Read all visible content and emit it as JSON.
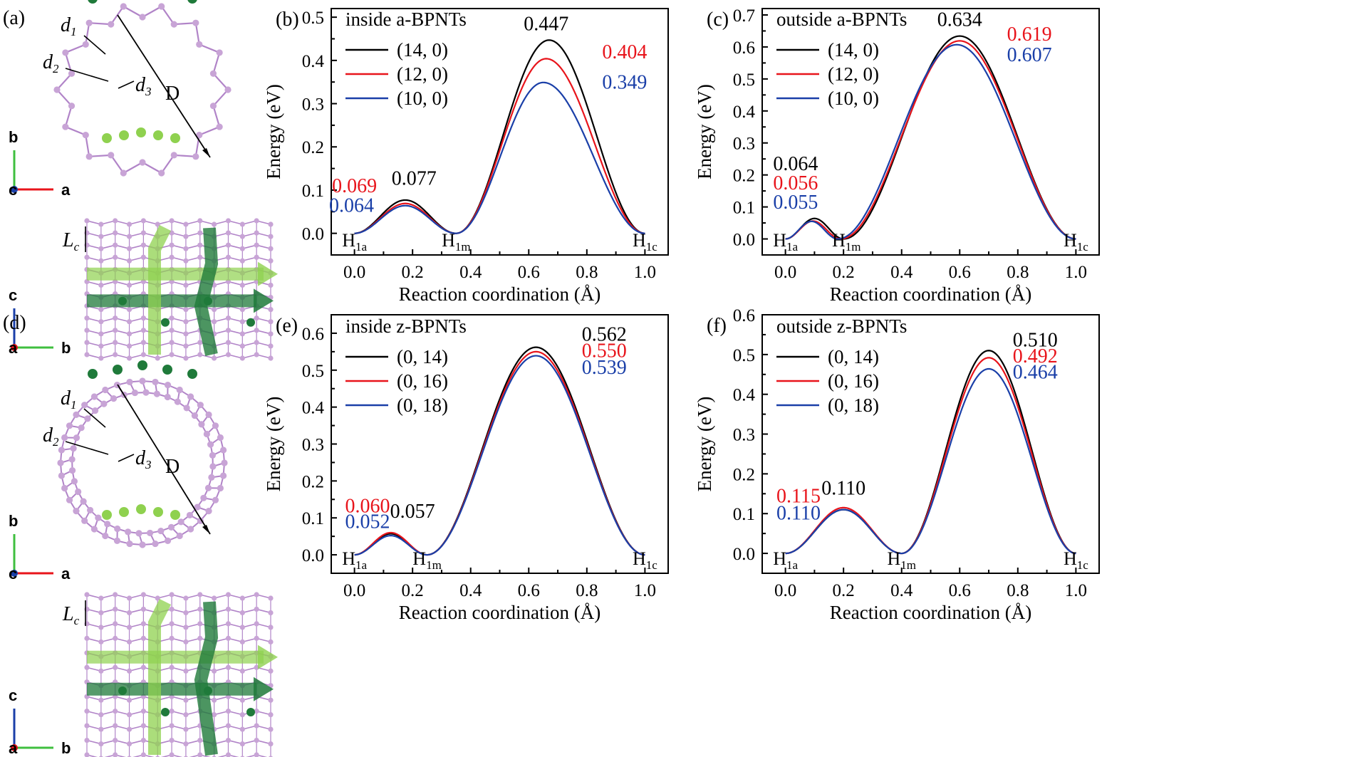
{
  "figure": {
    "molecule_panels": [
      {
        "letter": "(a)",
        "labels": {
          "d1": "d",
          "d1_sub": "1",
          "d2": "d",
          "d2_sub": "2",
          "d3": "d",
          "d3_sub": "3",
          "diameter": "D",
          "lc": "L",
          "lc_sub": "c"
        },
        "axes_top": {
          "x": "a",
          "y": "b",
          "origin": "c"
        },
        "axes_bottom": {
          "x": "b",
          "y": "c",
          "origin": "a"
        },
        "tube": "armchair"
      },
      {
        "letter": "(d)",
        "labels": {
          "d1": "d",
          "d1_sub": "1",
          "d2": "d",
          "d2_sub": "2",
          "d3": "d",
          "d3_sub": "3",
          "diameter": "D",
          "lc": "L",
          "lc_sub": "c"
        },
        "axes_top": {
          "x": "a",
          "y": "b",
          "origin": "c"
        },
        "axes_bottom": {
          "x": "b",
          "y": "c",
          "origin": "a"
        },
        "tube": "zigzag"
      }
    ],
    "colors": {
      "black": "#000000",
      "red": "#e8141b",
      "blue": "#1a3fa8",
      "atom": "#c8a4d6",
      "bond": "#b184c8",
      "h_dark": "#1f7a3a",
      "h_light": "#8fd14f"
    }
  },
  "chart_data": [
    {
      "letter": "(b)",
      "type": "line",
      "title": "inside a-BPNTs",
      "xlabel": "Reaction coordination (Å)",
      "ylabel": "Energy (eV)",
      "xlim": [
        -0.08,
        1.08
      ],
      "ylim": [
        -0.05,
        0.52
      ],
      "xticks": [
        "0.0",
        "0.2",
        "0.4",
        "0.6",
        "0.8",
        "1.0"
      ],
      "yticks": [
        "0.0",
        "0.1",
        "0.2",
        "0.3",
        "0.4",
        "0.5"
      ],
      "states": [
        {
          "label": "H",
          "sub": "1a",
          "x": 0.0
        },
        {
          "label": "H",
          "sub": "1m",
          "x": 0.35
        },
        {
          "label": "H",
          "sub": "1c",
          "x": 1.0
        }
      ],
      "series": [
        {
          "name": "(14, 0)",
          "color": "#000000",
          "x1": 0.175,
          "e1": 0.077,
          "xm": 0.35,
          "x2": 0.67,
          "e2": 0.447
        },
        {
          "name": "(12, 0)",
          "color": "#e8141b",
          "x1": 0.15,
          "e1": 0.069,
          "xm": 0.35,
          "x2": 0.66,
          "e2": 0.404
        },
        {
          "name": "(10, 0)",
          "color": "#1a3fa8",
          "x1": 0.14,
          "e1": 0.064,
          "xm": 0.35,
          "x2": 0.65,
          "e2": 0.349
        }
      ],
      "annotations": [
        {
          "text": "0.447",
          "color": "#000000"
        },
        {
          "text": "0.404",
          "color": "#e8141b"
        },
        {
          "text": "0.349",
          "color": "#1a3fa8"
        },
        {
          "text": "0.077",
          "color": "#000000"
        },
        {
          "text": "0.069",
          "color": "#e8141b"
        },
        {
          "text": "0.064",
          "color": "#1a3fa8"
        }
      ]
    },
    {
      "letter": "(c)",
      "type": "line",
      "title": "outside a-BPNTs",
      "xlabel": "Reaction coordination (Å)",
      "ylabel": "Energy (eV)",
      "xlim": [
        -0.08,
        1.08
      ],
      "ylim": [
        -0.05,
        0.72
      ],
      "xticks": [
        "0.0",
        "0.2",
        "0.4",
        "0.6",
        "0.8",
        "1.0"
      ],
      "yticks": [
        "0.0",
        "0.1",
        "0.2",
        "0.3",
        "0.4",
        "0.5",
        "0.6",
        "0.7"
      ],
      "states": [
        {
          "label": "H",
          "sub": "1a",
          "x": 0.0
        },
        {
          "label": "H",
          "sub": "1m",
          "x": 0.21
        },
        {
          "label": "H",
          "sub": "1c",
          "x": 1.0
        }
      ],
      "series": [
        {
          "name": "(14, 0)",
          "color": "#000000",
          "x1": 0.105,
          "e1": 0.064,
          "xm": 0.2,
          "x2": 0.6,
          "e2": 0.634
        },
        {
          "name": "(12, 0)",
          "color": "#e8141b",
          "x1": 0.1,
          "e1": 0.056,
          "xm": 0.19,
          "x2": 0.6,
          "e2": 0.619
        },
        {
          "name": "(10, 0)",
          "color": "#1a3fa8",
          "x1": 0.095,
          "e1": 0.055,
          "xm": 0.18,
          "x2": 0.59,
          "e2": 0.607
        }
      ],
      "annotations": [
        {
          "text": "0.634",
          "color": "#000000"
        },
        {
          "text": "0.619",
          "color": "#e8141b"
        },
        {
          "text": "0.607",
          "color": "#1a3fa8"
        },
        {
          "text": "0.064",
          "color": "#000000"
        },
        {
          "text": "0.056",
          "color": "#e8141b"
        },
        {
          "text": "0.055",
          "color": "#1a3fa8"
        }
      ]
    },
    {
      "letter": "(e)",
      "type": "line",
      "title": "inside z-BPNTs",
      "xlabel": "Reaction coordination (Å)",
      "ylabel": "Energy (eV)",
      "xlim": [
        -0.08,
        1.08
      ],
      "ylim": [
        -0.05,
        0.65
      ],
      "xticks": [
        "0.0",
        "0.2",
        "0.4",
        "0.6",
        "0.8",
        "1.0"
      ],
      "yticks": [
        "0.0",
        "0.1",
        "0.2",
        "0.3",
        "0.4",
        "0.5",
        "0.6"
      ],
      "states": [
        {
          "label": "H",
          "sub": "1a",
          "x": 0.0
        },
        {
          "label": "H",
          "sub": "1m",
          "x": 0.25
        },
        {
          "label": "H",
          "sub": "1c",
          "x": 1.0
        }
      ],
      "series": [
        {
          "name": "(0, 14)",
          "color": "#000000",
          "x1": 0.125,
          "e1": 0.057,
          "xm": 0.25,
          "x2": 0.625,
          "e2": 0.562
        },
        {
          "name": "(0, 16)",
          "color": "#e8141b",
          "x1": 0.125,
          "e1": 0.06,
          "xm": 0.25,
          "x2": 0.625,
          "e2": 0.55
        },
        {
          "name": "(0, 18)",
          "color": "#1a3fa8",
          "x1": 0.125,
          "e1": 0.052,
          "xm": 0.25,
          "x2": 0.625,
          "e2": 0.539
        }
      ],
      "annotations": [
        {
          "text": "0.562",
          "color": "#000000"
        },
        {
          "text": "0.550",
          "color": "#e8141b"
        },
        {
          "text": "0.539",
          "color": "#1a3fa8"
        },
        {
          "text": "0.057",
          "color": "#000000"
        },
        {
          "text": "0.060",
          "color": "#e8141b"
        },
        {
          "text": "0.052",
          "color": "#1a3fa8"
        }
      ]
    },
    {
      "letter": "(f)",
      "type": "line",
      "title": "outside z-BPNTs",
      "xlabel": "Reaction coordination (Å)",
      "ylabel": "Energy (eV)",
      "xlim": [
        -0.08,
        1.08
      ],
      "ylim": [
        -0.05,
        0.6
      ],
      "xticks": [
        "0.0",
        "0.2",
        "0.4",
        "0.6",
        "0.8",
        "1.0"
      ],
      "yticks": [
        "0.0",
        "0.1",
        "0.2",
        "0.3",
        "0.4",
        "0.5",
        "0.6"
      ],
      "states": [
        {
          "label": "H",
          "sub": "1a",
          "x": 0.0
        },
        {
          "label": "H",
          "sub": "1m",
          "x": 0.4
        },
        {
          "label": "H",
          "sub": "1c",
          "x": 1.0
        }
      ],
      "series": [
        {
          "name": "(0, 14)",
          "color": "#000000",
          "x1": 0.2,
          "e1": 0.11,
          "xm": 0.4,
          "x2": 0.7,
          "e2": 0.51
        },
        {
          "name": "(0, 16)",
          "color": "#e8141b",
          "x1": 0.2,
          "e1": 0.115,
          "xm": 0.4,
          "x2": 0.7,
          "e2": 0.492
        },
        {
          "name": "(0, 18)",
          "color": "#1a3fa8",
          "x1": 0.2,
          "e1": 0.11,
          "xm": 0.4,
          "x2": 0.7,
          "e2": 0.464
        }
      ],
      "annotations": [
        {
          "text": "0.510",
          "color": "#000000"
        },
        {
          "text": "0.492",
          "color": "#e8141b"
        },
        {
          "text": "0.464",
          "color": "#1a3fa8"
        },
        {
          "text": "0.110",
          "color": "#000000"
        },
        {
          "text": "0.115",
          "color": "#e8141b"
        },
        {
          "text": "0.110",
          "color": "#1a3fa8"
        }
      ]
    }
  ]
}
